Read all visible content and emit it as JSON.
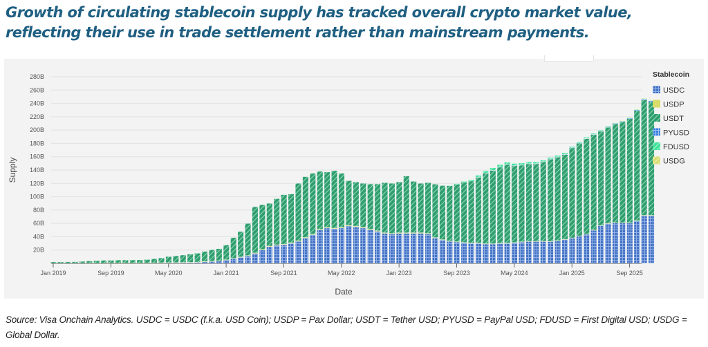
{
  "headline": "Growth of circulating stablecoin supply has tracked overall crypto market value, reflecting their use in trade settlement rather than mainstream payments.",
  "source_note": "Source: Visa Onchain Analytics. USDC = USDC (f.k.a. USD Coin); USDP = Pax Dollar; USDT = Tether USD; PYUSD = PayPal USD; FDUSD = First Digital USD; USDG = Global Dollar.",
  "colors": {
    "USDC": "#4472c4",
    "USDP": "#d8dc6a",
    "USDT": "#2e9e6e",
    "PYUSD": "#3b7fe0",
    "FDUSD": "#3fe39a",
    "USDG": "#d9dd72",
    "headline": "#1f5f82",
    "panel_bg": "#f3f3f3"
  },
  "chart_data": {
    "type": "bar",
    "stacked": true,
    "title": "",
    "xlabel": "Date",
    "ylabel": "Supply",
    "ylim": [
      0,
      280
    ],
    "y_unit": "B",
    "yticks": [
      "20B",
      "40B",
      "60B",
      "80B",
      "100B",
      "120B",
      "140B",
      "160B",
      "180B",
      "200B",
      "220B",
      "240B",
      "260B",
      "280B"
    ],
    "ytick_values": [
      20,
      40,
      60,
      80,
      100,
      120,
      140,
      160,
      180,
      200,
      220,
      240,
      260,
      280
    ],
    "xticks": [
      "Jan 2019",
      "Sep 2019",
      "May 2020",
      "Jan 2021",
      "Sep 2021",
      "May 2022",
      "Jan 2023",
      "Sep 2023",
      "May 2024",
      "Jan 2025",
      "Sep 2025"
    ],
    "xtick_month_index": [
      0,
      8,
      16,
      24,
      32,
      40,
      48,
      56,
      64,
      72,
      80
    ],
    "grid": true,
    "legend_title": "Stablecoin",
    "legend_position": "right",
    "legend": [
      "USDC",
      "USDP",
      "USDT",
      "PYUSD",
      "FDUSD",
      "USDG"
    ],
    "start_month": "Jan 2019",
    "series": [
      {
        "name": "USDC",
        "values": [
          0.3,
          0.3,
          0.3,
          0.3,
          0.3,
          0.4,
          0.4,
          0.4,
          0.4,
          0.5,
          0.5,
          0.5,
          0.5,
          0.6,
          0.7,
          0.8,
          0.9,
          1.0,
          1.2,
          1.5,
          1.8,
          2.5,
          3.0,
          3.5,
          5,
          7,
          9,
          11,
          15,
          20,
          25,
          27,
          28,
          30,
          33,
          38,
          43,
          50,
          53,
          52,
          53,
          56,
          55,
          53,
          50,
          48,
          45,
          44,
          45,
          45,
          45,
          45,
          44,
          38,
          35,
          33,
          32,
          31,
          30,
          30,
          29,
          29,
          30,
          30,
          31,
          32,
          33,
          33,
          33,
          33,
          34,
          36,
          38,
          41,
          44,
          50,
          57,
          60,
          61,
          61,
          61,
          64,
          72,
          72
        ]
      },
      {
        "name": "USDP",
        "values": [
          0.1,
          0.1,
          0.1,
          0.1,
          0.1,
          0.1,
          0.1,
          0.1,
          0.1,
          0.1,
          0.1,
          0.1,
          0.1,
          0.1,
          0.1,
          0.2,
          0.2,
          0.2,
          0.2,
          0.2,
          0.3,
          0.3,
          0.3,
          0.4,
          0.5,
          0.6,
          0.7,
          0.8,
          0.8,
          0.9,
          1.0,
          1.0,
          1.0,
          1.0,
          1.0,
          1.0,
          1.0,
          1.0,
          1.0,
          1.0,
          1.0,
          1.0,
          1.0,
          1.0,
          1.0,
          1.0,
          1.0,
          1.0,
          1.0,
          1.0,
          1.0,
          1.0,
          1.0,
          0.8,
          0.7,
          0.6,
          0.6,
          0.5,
          0.5,
          0.5,
          0.5,
          0.5,
          0.4,
          0.4,
          0.4,
          0.4,
          0.3,
          0.3,
          0.3,
          0.2,
          0.2,
          0.2,
          0.2,
          0.2,
          0.1,
          0.1,
          0.1,
          0.1,
          0.1,
          0.1,
          0.1,
          0.1,
          0.1,
          0.1
        ]
      },
      {
        "name": "USDT",
        "values": [
          1.8,
          1.8,
          1.9,
          2.0,
          2.5,
          3.0,
          3.5,
          4.0,
          4.0,
          4.3,
          4.3,
          4.4,
          4.6,
          5.0,
          6.0,
          7.0,
          9.0,
          10,
          11,
          12,
          13,
          15,
          17,
          18,
          22,
          31,
          38,
          48,
          69,
          67,
          64,
          69,
          74,
          73,
          86,
          91,
          91,
          87,
          83,
          86,
          81,
          67,
          66,
          66,
          68,
          70,
          75,
          75,
          76,
          85,
          77,
          74,
          76,
          80,
          81,
          83,
          86,
          90,
          93,
          99,
          106,
          110,
          114,
          118,
          115,
          115,
          116,
          116,
          119,
          123,
          125,
          127,
          135,
          139,
          143,
          143,
          141,
          144,
          148,
          151,
          156,
          165,
          173,
          170
        ]
      },
      {
        "name": "PYUSD",
        "values": [
          0,
          0,
          0,
          0,
          0,
          0,
          0,
          0,
          0,
          0,
          0,
          0,
          0,
          0,
          0,
          0,
          0,
          0,
          0,
          0,
          0,
          0,
          0,
          0,
          0,
          0,
          0,
          0,
          0,
          0,
          0,
          0,
          0,
          0,
          0,
          0,
          0,
          0,
          0,
          0,
          0,
          0,
          0,
          0,
          0,
          0,
          0,
          0,
          0,
          0,
          0,
          0,
          0,
          0,
          0,
          0,
          0,
          0,
          0,
          0.1,
          0.2,
          0.3,
          0.3,
          0.3,
          0.4,
          0.4,
          0.4,
          0.5,
          0.6,
          0.6,
          0.7,
          0.6,
          0.5,
          0.5,
          0.6,
          0.7,
          0.8,
          0.8,
          0.9,
          1.0,
          1.1,
          1.2,
          1.5,
          1.8
        ]
      },
      {
        "name": "FDUSD",
        "values": [
          0,
          0,
          0,
          0,
          0,
          0,
          0,
          0,
          0,
          0,
          0,
          0,
          0,
          0,
          0,
          0,
          0,
          0,
          0,
          0,
          0,
          0,
          0,
          0,
          0,
          0,
          0,
          0,
          0,
          0,
          0,
          0,
          0,
          0,
          0,
          0,
          0,
          0,
          0,
          0,
          0,
          0,
          0,
          0,
          0,
          0,
          0,
          0,
          0,
          0,
          0,
          0,
          0,
          0,
          0,
          0.3,
          1.0,
          1.5,
          2.0,
          2.5,
          3.0,
          3.5,
          3.5,
          3.0,
          3.0,
          2.8,
          2.5,
          2.5,
          2.0,
          2.0,
          2.0,
          2.0,
          1.5,
          1.5,
          1.5,
          1.2,
          1.0,
          1.0,
          1.0,
          1.0,
          0.8,
          0.8,
          0.7,
          0.7
        ]
      },
      {
        "name": "USDG",
        "values": [
          0,
          0,
          0,
          0,
          0,
          0,
          0,
          0,
          0,
          0,
          0,
          0,
          0,
          0,
          0,
          0,
          0,
          0,
          0,
          0,
          0,
          0,
          0,
          0,
          0,
          0,
          0,
          0,
          0,
          0,
          0,
          0,
          0,
          0,
          0,
          0,
          0,
          0,
          0,
          0,
          0,
          0,
          0,
          0,
          0,
          0,
          0,
          0,
          0,
          0,
          0,
          0,
          0,
          0,
          0,
          0,
          0,
          0,
          0,
          0,
          0,
          0,
          0,
          0,
          0,
          0,
          0,
          0,
          0,
          0,
          0,
          0,
          0,
          0,
          0,
          0,
          0,
          0,
          0.2,
          0.3,
          0.4,
          0.5,
          0.6,
          0.6
        ]
      }
    ]
  }
}
